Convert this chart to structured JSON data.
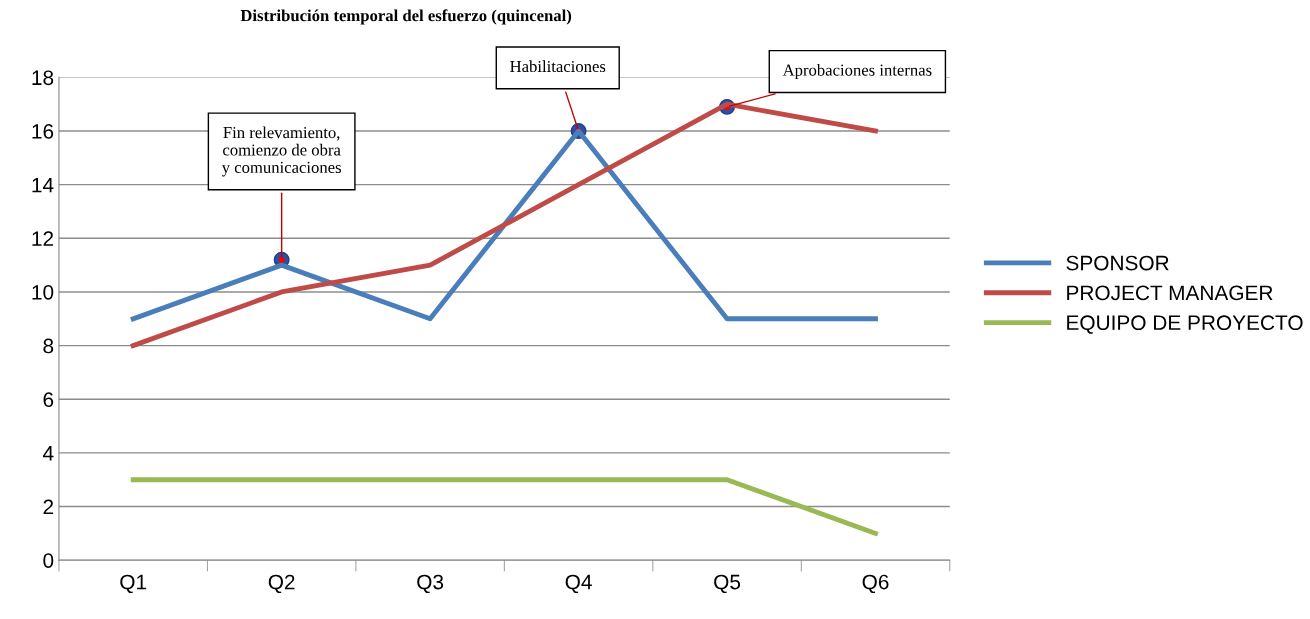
{
  "chart_data": {
    "type": "line",
    "title": "Distribución temporal del esfuerzo (quincenal)",
    "categories": [
      "Q1",
      "Q2",
      "Q3",
      "Q4",
      "Q5",
      "Q6"
    ],
    "series": [
      {
        "name": "SPONSOR",
        "color": "#4a7ebb",
        "values": [
          9,
          11,
          9,
          16,
          9,
          9
        ]
      },
      {
        "name": "PROJECT MANAGER",
        "color": "#be4b48",
        "values": [
          8,
          10,
          11,
          14,
          17,
          16
        ]
      },
      {
        "name": "EQUIPO DE PROYECTO",
        "color": "#98b954",
        "values": [
          3,
          3,
          3,
          3,
          3,
          1
        ]
      }
    ],
    "ylim": [
      0,
      18
    ],
    "yticks": [
      0,
      2,
      4,
      6,
      8,
      10,
      12,
      14,
      16,
      18
    ],
    "grid": "y",
    "legend": "right",
    "marker": "none",
    "line_style": "solid",
    "annotations": [
      {
        "text": "Fin relevamiento,\ncomienzo de obra\ny comunicaciones",
        "x": "Q2",
        "y": 11.2
      },
      {
        "text": "Habilitaciones",
        "x": "Q4",
        "y": 16
      },
      {
        "text": "Aprobaciones internas",
        "x": "Q5",
        "y": 16.9
      }
    ]
  }
}
